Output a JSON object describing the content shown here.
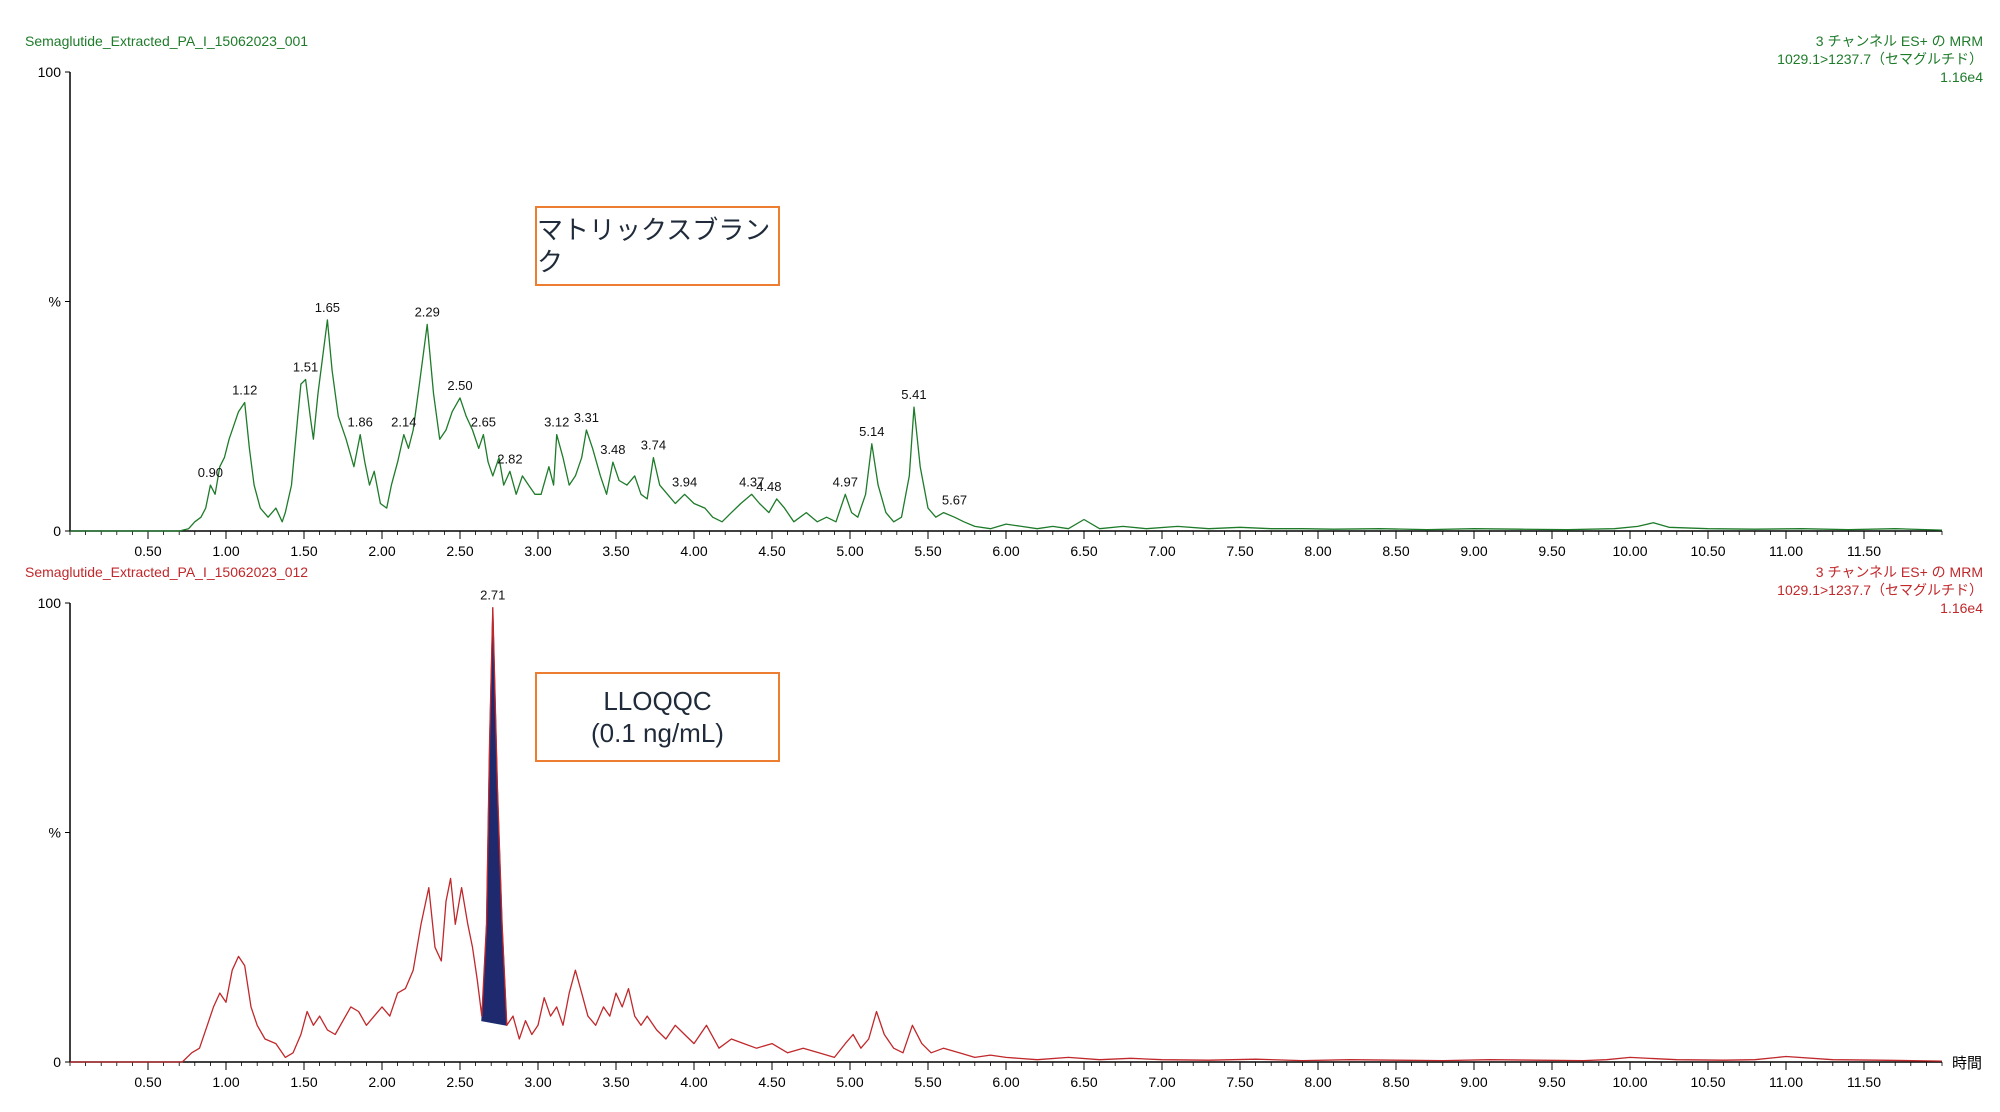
{
  "chart_data": [
    {
      "type": "line",
      "name": "Semaglutide_Extracted_PA_I_15062023_001",
      "header_left": "Semaglutide_Extracted_PA_I_15062023_001",
      "header_right": [
        "3 チャンネル ES+ の MRM",
        "1029.1>1237.7（セマグルチド）",
        "1.16e4"
      ],
      "annotation": [
        "マトリックスブランク"
      ],
      "color": "#1e7b2a",
      "xlim": [
        0.0,
        12.0
      ],
      "ylim": [
        0,
        100
      ],
      "y_ticks": [
        {
          "v": 0,
          "label": "0"
        },
        {
          "v": 50,
          "label": "%"
        },
        {
          "v": 100,
          "label": "100"
        }
      ],
      "x": [
        0.0,
        0.7,
        0.76,
        0.8,
        0.84,
        0.87,
        0.9,
        0.93,
        0.96,
        0.99,
        1.02,
        1.05,
        1.08,
        1.12,
        1.15,
        1.18,
        1.22,
        1.27,
        1.32,
        1.36,
        1.38,
        1.42,
        1.46,
        1.48,
        1.51,
        1.54,
        1.56,
        1.59,
        1.62,
        1.65,
        1.68,
        1.72,
        1.77,
        1.82,
        1.86,
        1.89,
        1.92,
        1.95,
        1.99,
        2.03,
        2.06,
        2.1,
        2.14,
        2.17,
        2.2,
        2.24,
        2.29,
        2.33,
        2.37,
        2.41,
        2.45,
        2.5,
        2.54,
        2.58,
        2.62,
        2.65,
        2.68,
        2.71,
        2.75,
        2.78,
        2.82,
        2.86,
        2.9,
        2.94,
        2.98,
        3.02,
        3.07,
        3.1,
        3.12,
        3.16,
        3.2,
        3.24,
        3.28,
        3.31,
        3.35,
        3.4,
        3.44,
        3.48,
        3.52,
        3.57,
        3.62,
        3.66,
        3.7,
        3.74,
        3.78,
        3.83,
        3.88,
        3.94,
        4.0,
        4.07,
        4.12,
        4.18,
        4.24,
        4.3,
        4.37,
        4.42,
        4.48,
        4.53,
        4.58,
        4.64,
        4.72,
        4.79,
        4.85,
        4.91,
        4.97,
        5.01,
        5.05,
        5.1,
        5.14,
        5.18,
        5.23,
        5.28,
        5.33,
        5.38,
        5.41,
        5.45,
        5.5,
        5.55,
        5.6,
        5.67,
        5.73,
        5.8,
        5.9,
        6.0,
        6.1,
        6.2,
        6.3,
        6.4,
        6.5,
        6.6,
        6.75,
        6.9,
        7.1,
        7.3,
        7.5,
        7.7,
        7.9,
        8.1,
        8.4,
        8.7,
        9.0,
        9.3,
        9.6,
        9.9,
        10.05,
        10.15,
        10.25,
        10.5,
        10.8,
        11.1,
        11.4,
        11.7,
        12.0
      ],
      "y": [
        0,
        0,
        0.5,
        2,
        3,
        5,
        10,
        8,
        14,
        16,
        20,
        23,
        26,
        28,
        18,
        10,
        5,
        3,
        5,
        2,
        4,
        10,
        25,
        32,
        33,
        25,
        20,
        30,
        38,
        46,
        35,
        25,
        20,
        14,
        21,
        15,
        10,
        13,
        6,
        5,
        10,
        15,
        21,
        18,
        22,
        32,
        45,
        30,
        20,
        22,
        26,
        29,
        25,
        22,
        18,
        21,
        15,
        12,
        16,
        10,
        13,
        8,
        12,
        10,
        8,
        8,
        14,
        10,
        21,
        16,
        10,
        12,
        16,
        22,
        18,
        12,
        8,
        15,
        11,
        10,
        12,
        8,
        7,
        16,
        10,
        8,
        6,
        8,
        6,
        5,
        3,
        2,
        4,
        6,
        8,
        6,
        4,
        7,
        5,
        2,
        4,
        2,
        3,
        2,
        8,
        4,
        3,
        8,
        19,
        10,
        4,
        2,
        3,
        12,
        27,
        14,
        5,
        3,
        4,
        3,
        2,
        1,
        0.5,
        1.5,
        1,
        0.5,
        1,
        0.5,
        2.5,
        0.5,
        1,
        0.5,
        1,
        0.5,
        0.8,
        0.5,
        0.5,
        0.4,
        0.5,
        0.3,
        0.5,
        0.4,
        0.3,
        0.5,
        1,
        1.8,
        0.8,
        0.5,
        0.4,
        0.5,
        0.3,
        0.5,
        0.2
      ],
      "peak_labels": [
        {
          "x": 0.9,
          "y": 10,
          "label": "0.90"
        },
        {
          "x": 1.12,
          "y": 28,
          "label": "1.12"
        },
        {
          "x": 1.51,
          "y": 33,
          "label": "1.51"
        },
        {
          "x": 1.65,
          "y": 46,
          "label": "1.65"
        },
        {
          "x": 1.86,
          "y": 21,
          "label": "1.86"
        },
        {
          "x": 2.14,
          "y": 21,
          "label": "2.14"
        },
        {
          "x": 2.29,
          "y": 45,
          "label": "2.29"
        },
        {
          "x": 2.5,
          "y": 29,
          "label": "2.50"
        },
        {
          "x": 2.65,
          "y": 21,
          "label": "2.65"
        },
        {
          "x": 2.82,
          "y": 13,
          "label": "2.82"
        },
        {
          "x": 3.12,
          "y": 21,
          "label": "3.12"
        },
        {
          "x": 3.31,
          "y": 22,
          "label": "3.31"
        },
        {
          "x": 3.48,
          "y": 15,
          "label": "3.48"
        },
        {
          "x": 3.74,
          "y": 16,
          "label": "3.74"
        },
        {
          "x": 3.94,
          "y": 8,
          "label": "3.94"
        },
        {
          "x": 4.37,
          "y": 8,
          "label": "4.37"
        },
        {
          "x": 4.48,
          "y": 7,
          "label": "4.48"
        },
        {
          "x": 4.97,
          "y": 8,
          "label": "4.97"
        },
        {
          "x": 5.14,
          "y": 19,
          "label": "5.14"
        },
        {
          "x": 5.41,
          "y": 27,
          "label": "5.41"
        },
        {
          "x": 5.67,
          "y": 4,
          "label": "5.67"
        }
      ],
      "x_ticks": [
        "0.50",
        "1.00",
        "1.50",
        "2.00",
        "2.50",
        "3.00",
        "3.50",
        "4.00",
        "4.50",
        "5.00",
        "5.50",
        "6.00",
        "6.50",
        "7.00",
        "7.50",
        "8.00",
        "8.50",
        "9.00",
        "9.50",
        "10.00",
        "10.50",
        "11.00",
        "11.50"
      ],
      "xlabel": ""
    },
    {
      "type": "line",
      "name": "Semaglutide_Extracted_PA_I_15062023_012",
      "header_left": "Semaglutide_Extracted_PA_I_15062023_012",
      "header_right": [
        "3 チャンネル ES+ の MRM",
        "1029.1>1237.7（セマグルチド）",
        "1.16e4"
      ],
      "annotation": [
        "LLOQQC",
        "(0.1 ng/mL)"
      ],
      "color": "#c0282b",
      "fill_color": "#1f2a6e",
      "xlim": [
        0.0,
        12.0
      ],
      "ylim": [
        0,
        100
      ],
      "y_ticks": [
        {
          "v": 0,
          "label": "0"
        },
        {
          "v": 50,
          "label": "%"
        },
        {
          "v": 100,
          "label": "100"
        }
      ],
      "x": [
        0.0,
        0.72,
        0.78,
        0.83,
        0.88,
        0.92,
        0.96,
        1.0,
        1.04,
        1.08,
        1.12,
        1.16,
        1.2,
        1.25,
        1.32,
        1.38,
        1.43,
        1.48,
        1.52,
        1.56,
        1.6,
        1.65,
        1.7,
        1.75,
        1.8,
        1.85,
        1.9,
        1.95,
        2.0,
        2.05,
        2.1,
        2.15,
        2.2,
        2.25,
        2.3,
        2.34,
        2.38,
        2.41,
        2.44,
        2.47,
        2.51,
        2.55,
        2.58,
        2.61,
        2.64,
        2.67,
        2.69,
        2.71,
        2.74,
        2.77,
        2.8,
        2.84,
        2.88,
        2.92,
        2.96,
        3.0,
        3.04,
        3.08,
        3.12,
        3.16,
        3.2,
        3.24,
        3.28,
        3.32,
        3.37,
        3.42,
        3.46,
        3.5,
        3.54,
        3.58,
        3.62,
        3.66,
        3.7,
        3.76,
        3.82,
        3.88,
        3.94,
        4.0,
        4.08,
        4.16,
        4.24,
        4.32,
        4.4,
        4.5,
        4.6,
        4.7,
        4.8,
        4.9,
        4.97,
        5.02,
        5.07,
        5.12,
        5.17,
        5.22,
        5.28,
        5.34,
        5.4,
        5.46,
        5.52,
        5.6,
        5.7,
        5.8,
        5.9,
        6.0,
        6.2,
        6.4,
        6.6,
        6.8,
        7.0,
        7.3,
        7.6,
        7.9,
        8.2,
        8.5,
        8.8,
        9.1,
        9.4,
        9.7,
        9.85,
        10.0,
        10.3,
        10.6,
        10.8,
        11.0,
        11.3,
        11.6,
        12.0
      ],
      "y": [
        0,
        0,
        2,
        3,
        8,
        12,
        15,
        13,
        20,
        23,
        21,
        12,
        8,
        5,
        4,
        1,
        2,
        6,
        11,
        8,
        10,
        7,
        6,
        9,
        12,
        11,
        8,
        10,
        12,
        10,
        15,
        16,
        20,
        30,
        38,
        25,
        22,
        35,
        40,
        30,
        38,
        30,
        25,
        18,
        10,
        30,
        70,
        99,
        60,
        30,
        8,
        10,
        5,
        9,
        6,
        8,
        14,
        10,
        12,
        8,
        15,
        20,
        15,
        10,
        8,
        12,
        10,
        15,
        12,
        16,
        10,
        8,
        10,
        7,
        5,
        8,
        6,
        4,
        8,
        3,
        5,
        4,
        3,
        4,
        2,
        3,
        2,
        1,
        4,
        6,
        3,
        5,
        11,
        6,
        3,
        2,
        8,
        4,
        2,
        3,
        2,
        1,
        1.5,
        1,
        0.5,
        1,
        0.5,
        0.8,
        0.5,
        0.4,
        0.6,
        0.3,
        0.5,
        0.4,
        0.3,
        0.5,
        0.4,
        0.3,
        0.5,
        1,
        0.5,
        0.4,
        0.5,
        1.2,
        0.5,
        0.4,
        0.2
      ],
      "filled_peak": {
        "x": [
          2.64,
          2.67,
          2.69,
          2.71,
          2.74,
          2.77,
          2.8
        ],
        "y": [
          9,
          30,
          70,
          99,
          60,
          30,
          8
        ]
      },
      "peak_labels": [
        {
          "x": 2.71,
          "y": 99,
          "label": "2.71"
        }
      ],
      "x_ticks": [
        "0.50",
        "1.00",
        "1.50",
        "2.00",
        "2.50",
        "3.00",
        "3.50",
        "4.00",
        "4.50",
        "5.00",
        "5.50",
        "6.00",
        "6.50",
        "7.00",
        "7.50",
        "8.00",
        "8.50",
        "9.00",
        "9.50",
        "10.00",
        "10.50",
        "11.00",
        "11.50"
      ],
      "xlabel": "時間"
    }
  ]
}
